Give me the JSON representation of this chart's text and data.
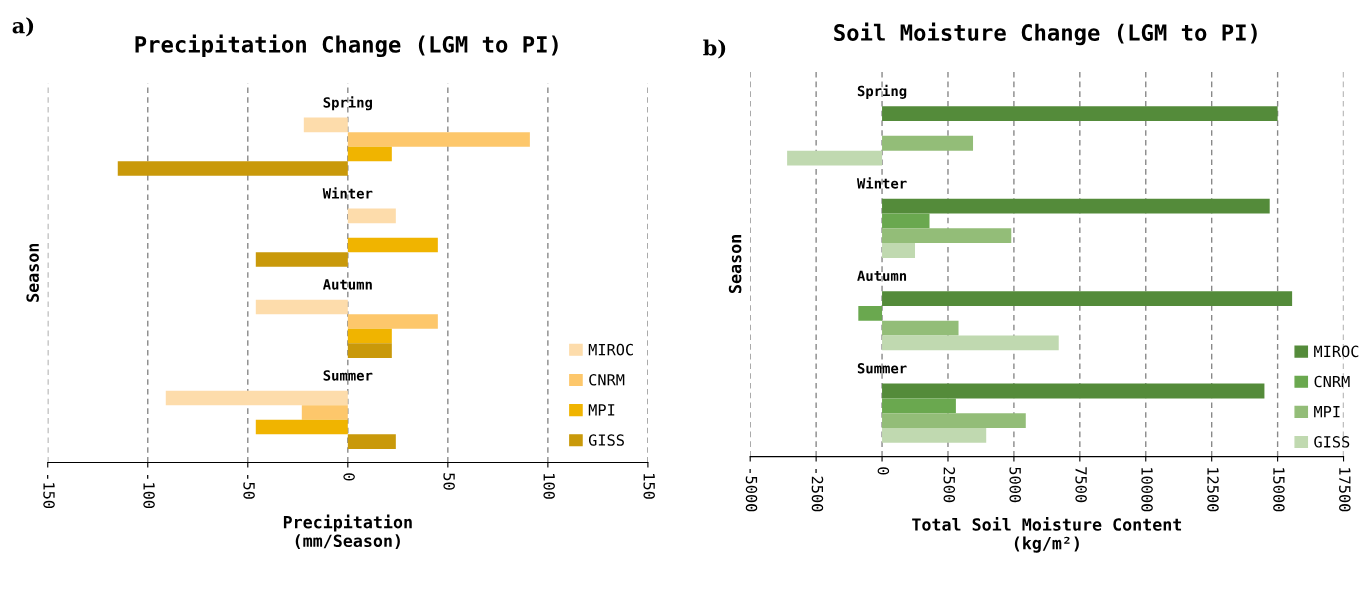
{
  "chart_data": [
    {
      "type": "bar",
      "orientation": "horizontal",
      "title": "Precipitation Change (LGM to PI)",
      "xlabel": "Precipitation\n(mm/Season)",
      "ylabel": "Season",
      "annotations": [
        "a)"
      ],
      "categories": [
        "Spring",
        "Winter",
        "Autumn",
        "Summer"
      ],
      "series": [
        {
          "name": "MIROC",
          "color": "#fddcab",
          "values": [
            -22,
            24,
            -46,
            -91
          ]
        },
        {
          "name": "CNRM",
          "color": "#fdc76b",
          "values": [
            91,
            0,
            45,
            -23
          ]
        },
        {
          "name": "MPI",
          "color": "#f0b400",
          "values": [
            22,
            45,
            22,
            -46
          ]
        },
        {
          "name": "GISS",
          "color": "#c9990a",
          "values": [
            -115,
            -46,
            22,
            24
          ]
        }
      ],
      "xlim": [
        -150,
        150
      ],
      "xticks": [
        -150,
        -100,
        -50,
        0,
        50,
        100,
        150
      ],
      "grid": "x",
      "legend": "bottom right"
    },
    {
      "type": "bar",
      "orientation": "horizontal",
      "title": "Soil Moisture Change (LGM to PI)",
      "xlabel": "Total Soil Moisture Content\n(kg/m²)",
      "ylabel": "Season",
      "annotations": [
        "b)"
      ],
      "categories": [
        "Spring",
        "Winter",
        "Autumn",
        "Summer"
      ],
      "series": [
        {
          "name": "MIROC",
          "color": "#548b3a",
          "values": [
            15000,
            14700,
            15550,
            14500
          ]
        },
        {
          "name": "CNRM",
          "color": "#6aa84f",
          "values": [
            0,
            1800,
            -900,
            2800
          ]
        },
        {
          "name": "MPI",
          "color": "#93bd78",
          "values": [
            3450,
            4900,
            2900,
            5450
          ]
        },
        {
          "name": "GISS",
          "color": "#c0d9b0",
          "values": [
            -3600,
            1250,
            6700,
            3950
          ]
        }
      ],
      "xlim": [
        -5000,
        17500
      ],
      "xticks": [
        -5000,
        -2500,
        0,
        2500,
        5000,
        7500,
        10000,
        12500,
        15000,
        17500
      ],
      "grid": "x",
      "legend": "bottom right"
    }
  ]
}
